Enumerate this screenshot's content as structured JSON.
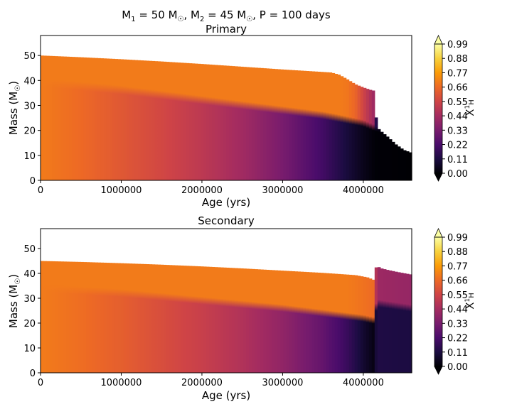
{
  "figure": {
    "suptitle_parts": [
      "M",
      "1",
      " = 50 M",
      "☉",
      ", M",
      "2",
      " = 45 M",
      "☉",
      ", P = 100 days"
    ]
  },
  "chart_data": [
    {
      "type": "heatmap",
      "title": "Primary",
      "xlabel": "Age (yrs)",
      "ylabel_parts": [
        "Mass (M",
        "☉",
        ")"
      ],
      "xlim": [
        0,
        4600000
      ],
      "ylim": [
        0,
        58
      ],
      "xticks": [
        0,
        1000000,
        2000000,
        3000000,
        4000000
      ],
      "yticks": [
        0,
        10,
        20,
        30,
        40,
        50
      ],
      "colormap": "inferno",
      "colorbar": {
        "label_parts": [
          "X",
          "1",
          "H"
        ],
        "ticks": [
          "0.00",
          "0.11",
          "0.22",
          "0.33",
          "0.44",
          "0.55",
          "0.66",
          "0.77",
          "0.88",
          "0.99"
        ],
        "range": [
          0,
          0.99
        ],
        "extend": "both"
      },
      "total_mass_profile": [
        [
          0,
          50
        ],
        [
          500000,
          49.3
        ],
        [
          1000000,
          48.5
        ],
        [
          1500000,
          47.6
        ],
        [
          2000000,
          46.6
        ],
        [
          2500000,
          45.5
        ],
        [
          3000000,
          44.4
        ],
        [
          3300000,
          43.8
        ],
        [
          3600000,
          43.2
        ],
        [
          3700000,
          42.3
        ],
        [
          3800000,
          40.5
        ],
        [
          3900000,
          38.5
        ],
        [
          4000000,
          37.2
        ],
        [
          4100000,
          36.1
        ],
        [
          4150000,
          35.8
        ],
        [
          4160000,
          22
        ],
        [
          4200000,
          20.2
        ],
        [
          4300000,
          17.5
        ],
        [
          4400000,
          14.5
        ],
        [
          4500000,
          12.2
        ],
        [
          4600000,
          11
        ]
      ],
      "envelope_hydrogen": [
        [
          0,
          0.7
        ],
        [
          1000000,
          0.7
        ],
        [
          2000000,
          0.7
        ],
        [
          3000000,
          0.7
        ],
        [
          3700000,
          0.7
        ],
        [
          3800000,
          0.69
        ],
        [
          3900000,
          0.65
        ],
        [
          4000000,
          0.55
        ],
        [
          4100000,
          0.45
        ],
        [
          4150000,
          0.4
        ],
        [
          4160000,
          0.05
        ],
        [
          4600000,
          0.0
        ]
      ],
      "core_hydrogen": [
        [
          0,
          0.7
        ],
        [
          500000,
          0.66
        ],
        [
          1000000,
          0.61
        ],
        [
          1500000,
          0.56
        ],
        [
          2000000,
          0.5
        ],
        [
          2500000,
          0.43
        ],
        [
          3000000,
          0.33
        ],
        [
          3500000,
          0.2
        ],
        [
          3800000,
          0.1
        ],
        [
          4000000,
          0.04
        ],
        [
          4150000,
          0.005
        ],
        [
          4600000,
          0.0
        ]
      ],
      "core_boundary_mass": [
        [
          0,
          38
        ],
        [
          1000000,
          35
        ],
        [
          2000000,
          31
        ],
        [
          3000000,
          27
        ],
        [
          3500000,
          25
        ],
        [
          4000000,
          22
        ],
        [
          4150000,
          20
        ],
        [
          4600000,
          15
        ]
      ]
    },
    {
      "type": "heatmap",
      "title": "Secondary",
      "xlabel": "Age (yrs)",
      "ylabel_parts": [
        "Mass (M",
        "☉",
        ")"
      ],
      "xlim": [
        0,
        4600000
      ],
      "ylim": [
        0,
        58
      ],
      "xticks": [
        0,
        1000000,
        2000000,
        3000000,
        4000000
      ],
      "yticks": [
        0,
        10,
        20,
        30,
        40,
        50
      ],
      "colormap": "inferno",
      "colorbar": {
        "label_parts": [
          "X",
          "1",
          "H"
        ],
        "ticks": [
          "0.00",
          "0.11",
          "0.22",
          "0.33",
          "0.44",
          "0.55",
          "0.66",
          "0.77",
          "0.88",
          "0.99"
        ],
        "range": [
          0,
          0.99
        ],
        "extend": "both"
      },
      "total_mass_profile": [
        [
          0,
          45
        ],
        [
          500000,
          44.6
        ],
        [
          1000000,
          44.1
        ],
        [
          1500000,
          43.5
        ],
        [
          2000000,
          42.8
        ],
        [
          2500000,
          42
        ],
        [
          3000000,
          41.1
        ],
        [
          3500000,
          40.2
        ],
        [
          3900000,
          39.3
        ],
        [
          4050000,
          38.4
        ],
        [
          4150000,
          37.1
        ],
        [
          4160000,
          44
        ],
        [
          4200000,
          42.2
        ],
        [
          4300000,
          41.4
        ],
        [
          4400000,
          40.7
        ],
        [
          4500000,
          40.1
        ],
        [
          4600000,
          39.5
        ]
      ],
      "envelope_hydrogen": [
        [
          0,
          0.7
        ],
        [
          1000000,
          0.7
        ],
        [
          2000000,
          0.7
        ],
        [
          3000000,
          0.7
        ],
        [
          3800000,
          0.7
        ],
        [
          4000000,
          0.68
        ],
        [
          4150000,
          0.66
        ],
        [
          4160000,
          0.42
        ],
        [
          4600000,
          0.4
        ]
      ],
      "core_hydrogen": [
        [
          0,
          0.7
        ],
        [
          500000,
          0.67
        ],
        [
          1000000,
          0.63
        ],
        [
          1500000,
          0.58
        ],
        [
          2000000,
          0.53
        ],
        [
          2500000,
          0.47
        ],
        [
          3000000,
          0.39
        ],
        [
          3500000,
          0.28
        ],
        [
          3800000,
          0.18
        ],
        [
          4000000,
          0.08
        ],
        [
          4150000,
          0.02
        ],
        [
          4160000,
          0.12
        ],
        [
          4600000,
          0.11
        ]
      ],
      "core_boundary_mass": [
        [
          0,
          33
        ],
        [
          1000000,
          31
        ],
        [
          2000000,
          28
        ],
        [
          3000000,
          25
        ],
        [
          3500000,
          23
        ],
        [
          4000000,
          21
        ],
        [
          4150000,
          20
        ],
        [
          4160000,
          27
        ],
        [
          4600000,
          25
        ]
      ]
    }
  ]
}
